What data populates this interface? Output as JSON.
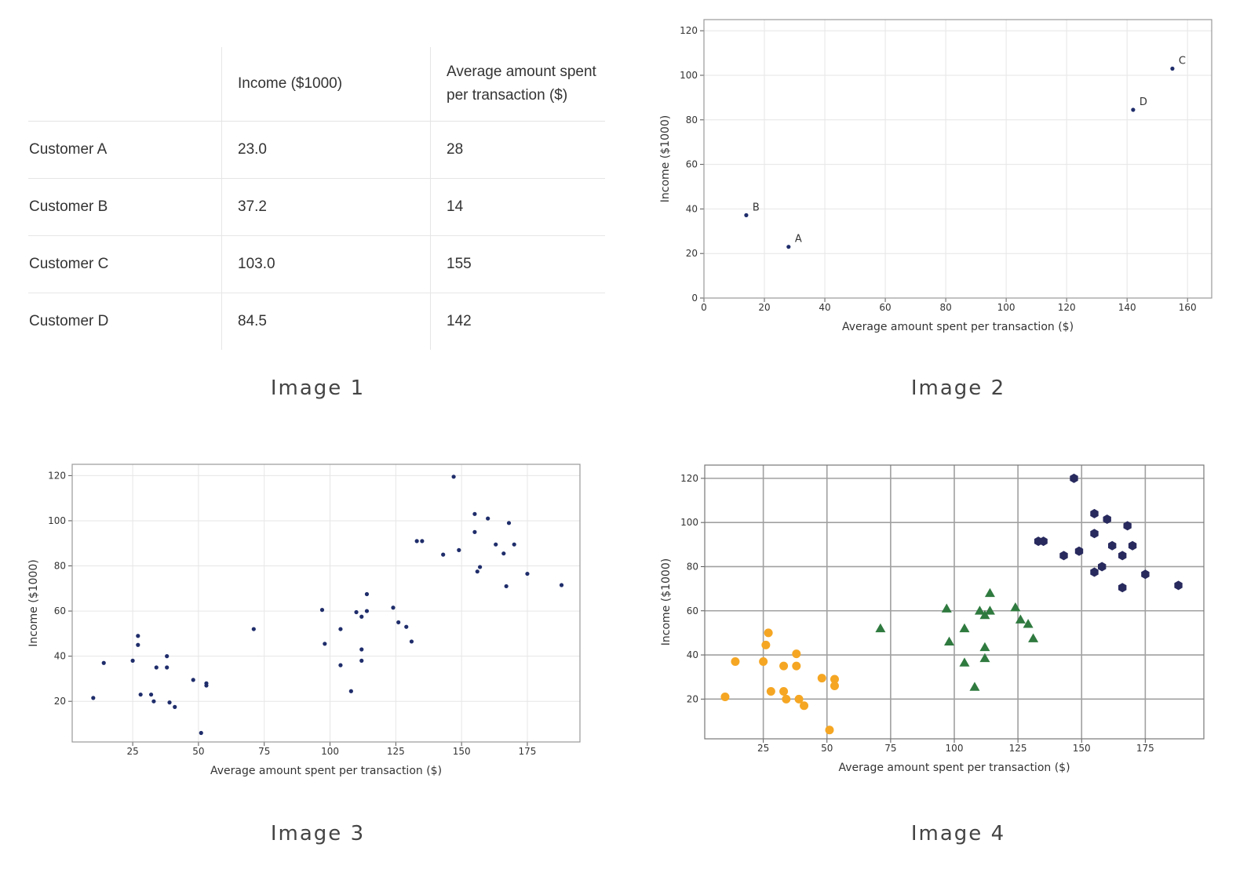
{
  "table": {
    "headers": [
      "",
      "Income ($1000)",
      "Average amount spent per transaction ($)"
    ],
    "rows": [
      [
        "Customer A",
        "23.0",
        "28"
      ],
      [
        "Customer B",
        "37.2",
        "14"
      ],
      [
        "Customer C",
        "103.0",
        "155"
      ],
      [
        "Customer D",
        "84.5",
        "142"
      ]
    ]
  },
  "captions": [
    "Image 1",
    "Image 2",
    "Image 3",
    "Image 4"
  ],
  "chart_data": [
    {
      "type": "scatter",
      "xlabel": "Average amount spent per transaction ($)",
      "ylabel": "Income ($1000)",
      "xlim": [
        0,
        168
      ],
      "ylim": [
        0,
        125
      ],
      "xticks": [
        0,
        20,
        40,
        60,
        80,
        100,
        120,
        140,
        160
      ],
      "yticks": [
        0,
        20,
        40,
        60,
        80,
        100,
        120
      ],
      "grid": true,
      "color": "#1f2d6b",
      "points": [
        {
          "label": "A",
          "x": 28,
          "y": 23.0
        },
        {
          "label": "B",
          "x": 14,
          "y": 37.2
        },
        {
          "label": "C",
          "x": 155,
          "y": 103.0
        },
        {
          "label": "D",
          "x": 142,
          "y": 84.5
        }
      ]
    },
    {
      "type": "scatter",
      "xlabel": "Average amount spent per transaction ($)",
      "ylabel": "Income ($1000)",
      "xlim": [
        2,
        195
      ],
      "ylim": [
        2,
        125
      ],
      "xticks": [
        25,
        50,
        75,
        100,
        125,
        150,
        175
      ],
      "yticks": [
        20,
        40,
        60,
        80,
        100,
        120
      ],
      "grid": true,
      "color": "#1f2d6b",
      "points": [
        [
          10,
          21.5
        ],
        [
          14,
          37
        ],
        [
          25,
          38
        ],
        [
          27,
          45
        ],
        [
          27,
          49
        ],
        [
          28,
          23
        ],
        [
          32,
          23
        ],
        [
          33,
          20
        ],
        [
          34,
          35
        ],
        [
          38,
          35
        ],
        [
          38,
          40
        ],
        [
          39,
          19.5
        ],
        [
          41,
          17.5
        ],
        [
          48,
          29.5
        ],
        [
          51,
          6
        ],
        [
          53,
          28
        ],
        [
          53,
          27
        ],
        [
          71,
          52
        ],
        [
          97,
          60.5
        ],
        [
          98,
          45.5
        ],
        [
          104,
          52
        ],
        [
          104,
          36
        ],
        [
          108,
          24.5
        ],
        [
          110,
          59.5
        ],
        [
          112,
          57.5
        ],
        [
          112,
          43
        ],
        [
          112,
          38
        ],
        [
          114,
          67.5
        ],
        [
          114,
          60
        ],
        [
          124,
          61.5
        ],
        [
          126,
          55
        ],
        [
          129,
          53
        ],
        [
          131,
          46.5
        ],
        [
          133,
          91
        ],
        [
          135,
          91
        ],
        [
          143,
          85
        ],
        [
          147,
          119.5
        ],
        [
          149,
          87
        ],
        [
          155,
          103
        ],
        [
          155,
          95
        ],
        [
          156,
          77.5
        ],
        [
          157,
          79.5
        ],
        [
          160,
          101
        ],
        [
          163,
          89.5
        ],
        [
          166,
          85.5
        ],
        [
          167,
          71
        ],
        [
          168,
          99
        ],
        [
          170,
          89.5
        ],
        [
          175,
          76.5
        ],
        [
          188,
          71.5
        ]
      ]
    },
    {
      "type": "scatter",
      "xlabel": "Average amount spent per transaction ($)",
      "ylabel": "Income ($1000)",
      "xlim": [
        2,
        198
      ],
      "ylim": [
        2,
        126
      ],
      "xticks": [
        25,
        50,
        75,
        100,
        125,
        150,
        175
      ],
      "yticks": [
        20,
        40,
        60,
        80,
        100,
        120
      ],
      "grid": true,
      "clusters": [
        {
          "color": "#f5a623",
          "marker": "circle",
          "points": [
            [
              10,
              21
            ],
            [
              14,
              37
            ],
            [
              25,
              37
            ],
            [
              26,
              44.5
            ],
            [
              27,
              50
            ],
            [
              28,
              23.5
            ],
            [
              33,
              23.5
            ],
            [
              33,
              35
            ],
            [
              34,
              20
            ],
            [
              38,
              35
            ],
            [
              38,
              40.5
            ],
            [
              39,
              20
            ],
            [
              41,
              17
            ],
            [
              48,
              29.5
            ],
            [
              51,
              6
            ],
            [
              53,
              29
            ],
            [
              53,
              26
            ]
          ]
        },
        {
          "color": "#2f7a3f",
          "marker": "triangle",
          "points": [
            [
              71,
              52
            ],
            [
              97,
              61
            ],
            [
              98,
              46
            ],
            [
              104,
              52
            ],
            [
              104,
              36.5
            ],
            [
              108,
              25.5
            ],
            [
              110,
              60
            ],
            [
              112,
              58
            ],
            [
              112,
              43.5
            ],
            [
              112,
              38.5
            ],
            [
              114,
              68
            ],
            [
              114,
              60
            ],
            [
              124,
              61.5
            ],
            [
              126,
              56
            ],
            [
              129,
              54
            ],
            [
              131,
              47.5
            ]
          ]
        },
        {
          "color": "#282a5e",
          "marker": "hexagon",
          "points": [
            [
              133,
              91.5
            ],
            [
              135,
              91.5
            ],
            [
              143,
              85
            ],
            [
              147,
              120
            ],
            [
              149,
              87
            ],
            [
              155,
              104
            ],
            [
              155,
              95
            ],
            [
              155,
              77.5
            ],
            [
              158,
              80
            ],
            [
              160,
              101.5
            ],
            [
              162,
              89.5
            ],
            [
              166,
              85
            ],
            [
              166,
              70.5
            ],
            [
              168,
              98.5
            ],
            [
              170,
              89.5
            ],
            [
              175,
              76.5
            ],
            [
              188,
              71.5
            ]
          ]
        }
      ]
    }
  ]
}
